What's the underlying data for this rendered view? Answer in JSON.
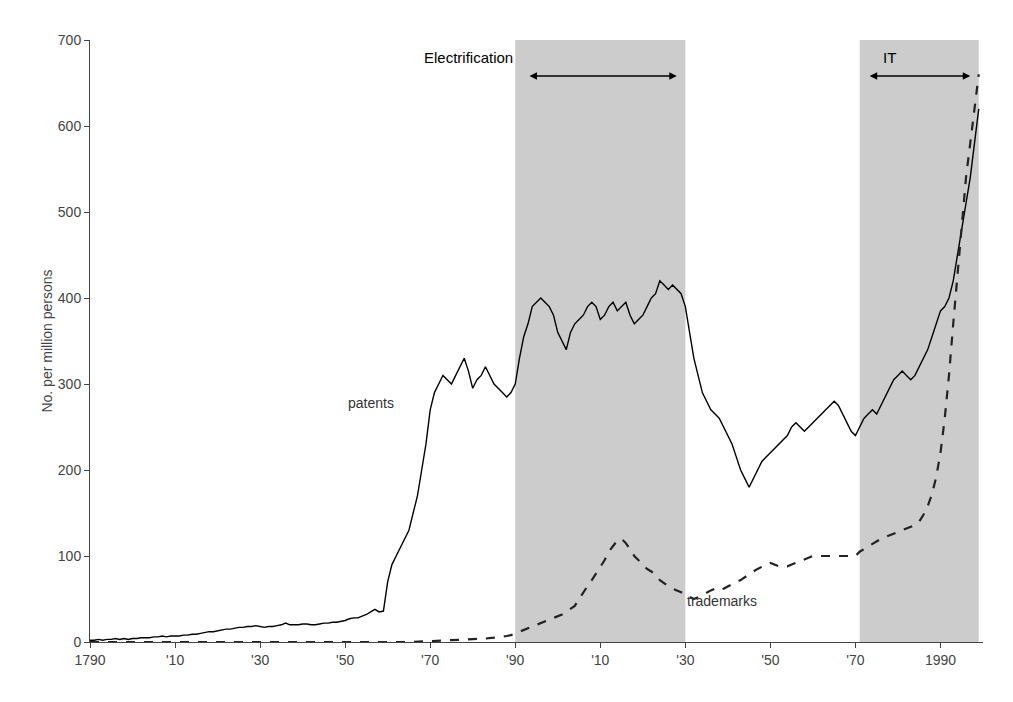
{
  "chart_data": {
    "type": "line",
    "ylabel": "No. per million persons",
    "xlim": [
      1790,
      2000
    ],
    "ylim": [
      0,
      700
    ],
    "xticks": [
      1790,
      {
        "value": 1810,
        "label": "'10"
      },
      {
        "value": 1830,
        "label": "'30"
      },
      {
        "value": 1850,
        "label": "'50"
      },
      {
        "value": 1870,
        "label": "'70"
      },
      {
        "value": 1890,
        "label": "'90"
      },
      {
        "value": 1910,
        "label": "'10"
      },
      {
        "value": 1930,
        "label": "'30"
      },
      {
        "value": 1950,
        "label": "'50"
      },
      {
        "value": 1970,
        "label": "'70"
      },
      1990
    ],
    "yticks": [
      0,
      100,
      200,
      300,
      400,
      500,
      600,
      700
    ],
    "grid": false,
    "shade_color": "#cccccc",
    "shaded_regions": [
      {
        "x0": 1890,
        "x1": 1930,
        "label": "Electrification",
        "label_x": 1868,
        "label_y": 668,
        "arrow_x0": 1893,
        "arrow_x1": 1928,
        "arrow_y": 658
      },
      {
        "x0": 1971,
        "x1": 1999,
        "label": "IT",
        "label_x": 1976,
        "label_y": 668,
        "arrow_x0": 1973,
        "arrow_x1": 1997,
        "arrow_y": 658
      }
    ],
    "annotations": [
      {
        "text": "patents",
        "x": 1856,
        "y": 278,
        "align": "center"
      },
      {
        "text": "trademarks",
        "x": 1930,
        "y": 48,
        "align": "left"
      }
    ],
    "series": [
      {
        "name": "patents",
        "color": "#000000",
        "line_style": "solid",
        "x": [
          1790,
          1791,
          1792,
          1793,
          1794,
          1795,
          1796,
          1797,
          1798,
          1799,
          1800,
          1801,
          1802,
          1803,
          1804,
          1805,
          1806,
          1807,
          1808,
          1809,
          1810,
          1811,
          1812,
          1813,
          1814,
          1815,
          1816,
          1817,
          1818,
          1819,
          1820,
          1821,
          1822,
          1823,
          1824,
          1825,
          1826,
          1827,
          1828,
          1829,
          1830,
          1831,
          1832,
          1833,
          1834,
          1835,
          1836,
          1837,
          1838,
          1839,
          1840,
          1841,
          1842,
          1843,
          1844,
          1845,
          1846,
          1847,
          1848,
          1849,
          1850,
          1851,
          1852,
          1853,
          1854,
          1855,
          1856,
          1857,
          1858,
          1859,
          1860,
          1861,
          1862,
          1863,
          1864,
          1865,
          1866,
          1867,
          1868,
          1869,
          1870,
          1871,
          1872,
          1873,
          1874,
          1875,
          1876,
          1877,
          1878,
          1879,
          1880,
          1881,
          1882,
          1883,
          1884,
          1885,
          1886,
          1887,
          1888,
          1889,
          1890,
          1891,
          1892,
          1893,
          1894,
          1895,
          1896,
          1897,
          1898,
          1899,
          1900,
          1901,
          1902,
          1903,
          1904,
          1905,
          1906,
          1907,
          1908,
          1909,
          1910,
          1911,
          1912,
          1913,
          1914,
          1915,
          1916,
          1917,
          1918,
          1919,
          1920,
          1921,
          1922,
          1923,
          1924,
          1925,
          1926,
          1927,
          1928,
          1929,
          1930,
          1931,
          1932,
          1933,
          1934,
          1935,
          1936,
          1937,
          1938,
          1939,
          1940,
          1941,
          1942,
          1943,
          1944,
          1945,
          1946,
          1947,
          1948,
          1949,
          1950,
          1951,
          1952,
          1953,
          1954,
          1955,
          1956,
          1957,
          1958,
          1959,
          1960,
          1961,
          1962,
          1963,
          1964,
          1965,
          1966,
          1967,
          1968,
          1969,
          1970,
          1971,
          1972,
          1973,
          1974,
          1975,
          1976,
          1977,
          1978,
          1979,
          1980,
          1981,
          1982,
          1983,
          1984,
          1985,
          1986,
          1987,
          1988,
          1989,
          1990,
          1991,
          1992,
          1993,
          1994,
          1995,
          1996,
          1997,
          1998,
          1999
        ],
        "values": [
          2,
          2,
          3,
          2,
          3,
          3,
          4,
          3,
          4,
          3,
          4,
          4,
          5,
          5,
          5,
          6,
          6,
          7,
          6,
          7,
          7,
          7,
          8,
          8,
          9,
          9,
          10,
          11,
          12,
          12,
          13,
          14,
          15,
          15,
          16,
          17,
          17,
          18,
          18,
          19,
          18,
          17,
          18,
          18,
          19,
          20,
          22,
          20,
          20,
          20,
          21,
          21,
          20,
          20,
          21,
          22,
          22,
          23,
          23,
          24,
          25,
          27,
          28,
          28,
          30,
          32,
          35,
          38,
          35,
          36,
          70,
          90,
          100,
          110,
          120,
          130,
          150,
          170,
          200,
          230,
          270,
          290,
          300,
          310,
          305,
          300,
          310,
          320,
          330,
          315,
          295,
          305,
          310,
          320,
          310,
          300,
          295,
          290,
          285,
          290,
          300,
          330,
          355,
          370,
          390,
          395,
          400,
          395,
          390,
          380,
          360,
          350,
          340,
          360,
          370,
          375,
          380,
          390,
          395,
          390,
          375,
          380,
          390,
          395,
          385,
          390,
          395,
          380,
          370,
          375,
          380,
          390,
          400,
          405,
          420,
          415,
          410,
          415,
          410,
          405,
          390,
          360,
          330,
          310,
          290,
          280,
          270,
          265,
          260,
          250,
          240,
          230,
          215,
          200,
          190,
          180,
          190,
          200,
          210,
          215,
          220,
          225,
          230,
          235,
          240,
          250,
          255,
          250,
          245,
          250,
          255,
          260,
          265,
          270,
          275,
          280,
          275,
          265,
          255,
          245,
          240,
          250,
          260,
          265,
          270,
          265,
          275,
          285,
          295,
          305,
          310,
          315,
          310,
          305,
          310,
          320,
          330,
          340,
          355,
          370,
          385,
          390,
          400,
          420,
          450,
          480,
          510,
          540,
          580,
          620
        ]
      },
      {
        "name": "trademarks",
        "color": "#222222",
        "line_style": "dashed",
        "x": [
          1790,
          1800,
          1810,
          1820,
          1830,
          1840,
          1850,
          1855,
          1860,
          1865,
          1870,
          1875,
          1880,
          1883,
          1885,
          1887,
          1888,
          1889,
          1890,
          1891,
          1892,
          1893,
          1894,
          1895,
          1896,
          1897,
          1898,
          1899,
          1900,
          1901,
          1902,
          1903,
          1904,
          1905,
          1906,
          1907,
          1908,
          1909,
          1910,
          1911,
          1912,
          1913,
          1914,
          1915,
          1916,
          1917,
          1918,
          1919,
          1920,
          1921,
          1922,
          1923,
          1924,
          1925,
          1926,
          1927,
          1928,
          1929,
          1930,
          1931,
          1932,
          1933,
          1934,
          1935,
          1936,
          1937,
          1938,
          1939,
          1940,
          1941,
          1942,
          1943,
          1944,
          1945,
          1946,
          1947,
          1948,
          1949,
          1950,
          1951,
          1952,
          1953,
          1954,
          1955,
          1956,
          1957,
          1958,
          1959,
          1960,
          1961,
          1962,
          1963,
          1964,
          1965,
          1966,
          1967,
          1968,
          1969,
          1970,
          1971,
          1972,
          1973,
          1974,
          1975,
          1976,
          1977,
          1978,
          1979,
          1980,
          1981,
          1982,
          1983,
          1984,
          1985,
          1986,
          1987,
          1988,
          1989,
          1990,
          1991,
          1992,
          1993,
          1994,
          1995,
          1996,
          1997,
          1998,
          1999
        ],
        "values": [
          0,
          0,
          0,
          0,
          0,
          0,
          0,
          0,
          0,
          0,
          1,
          2,
          3,
          4,
          5,
          6,
          7,
          8,
          10,
          12,
          14,
          16,
          18,
          20,
          22,
          24,
          26,
          28,
          30,
          32,
          35,
          38,
          42,
          50,
          58,
          65,
          72,
          80,
          88,
          95,
          105,
          112,
          118,
          120,
          115,
          108,
          100,
          95,
          90,
          85,
          82,
          78,
          72,
          68,
          65,
          62,
          60,
          58,
          55,
          52,
          50,
          52,
          55,
          58,
          60,
          62,
          60,
          62,
          65,
          68,
          70,
          72,
          75,
          78,
          82,
          85,
          88,
          90,
          92,
          90,
          88,
          88,
          88,
          90,
          92,
          94,
          96,
          98,
          100,
          100,
          100,
          100,
          100,
          100,
          100,
          100,
          100,
          100,
          100,
          105,
          108,
          112,
          115,
          118,
          120,
          122,
          124,
          126,
          128,
          130,
          132,
          134,
          136,
          140,
          148,
          158,
          172,
          192,
          220,
          260,
          310,
          370,
          430,
          490,
          540,
          580,
          620,
          660
        ]
      }
    ]
  }
}
